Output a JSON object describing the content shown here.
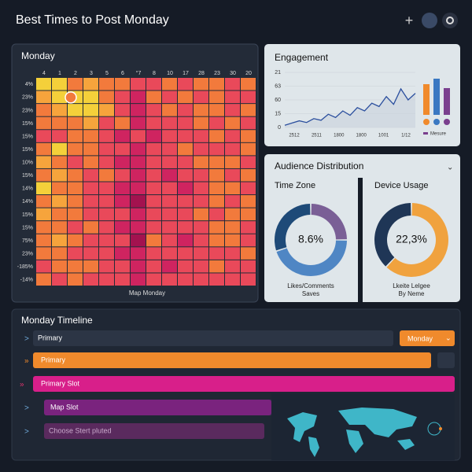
{
  "header": {
    "title": "Best Times to Post Monday"
  },
  "heatmap": {
    "title": "Monday",
    "footer": "Map Monday",
    "columns": [
      "4",
      "1",
      "2",
      "3",
      "5",
      "6",
      "°7",
      "8",
      "10",
      "17",
      "28",
      "23",
      "30",
      "20"
    ],
    "rows": [
      "4%",
      "23%",
      "23%",
      "15%",
      "15%",
      "15%",
      "10%",
      "15%",
      "14%",
      "14%",
      "15%",
      "15%",
      "75%",
      "23%",
      "-185%",
      "-14%"
    ],
    "colors": [
      "#f4d03a",
      "#f6a43c",
      "#f27a3c",
      "#e9495a",
      "#cf2460",
      "#a3124f"
    ],
    "values": [
      [
        1,
        1,
        3,
        2,
        3,
        3,
        4,
        4,
        3,
        4,
        3,
        3,
        4,
        3
      ],
      [
        2,
        1,
        1,
        1,
        3,
        4,
        5,
        3,
        4,
        3,
        4,
        3,
        4,
        4
      ],
      [
        3,
        2,
        1,
        1,
        2,
        4,
        5,
        4,
        3,
        4,
        3,
        3,
        4,
        3
      ],
      [
        3,
        3,
        3,
        2,
        4,
        3,
        5,
        4,
        4,
        4,
        3,
        4,
        3,
        4
      ],
      [
        4,
        4,
        3,
        3,
        4,
        5,
        4,
        5,
        4,
        4,
        4,
        3,
        4,
        3
      ],
      [
        3,
        1,
        3,
        3,
        4,
        4,
        5,
        4,
        4,
        3,
        4,
        4,
        4,
        3
      ],
      [
        2,
        3,
        4,
        3,
        4,
        5,
        5,
        4,
        4,
        4,
        3,
        3,
        3,
        4
      ],
      [
        3,
        2,
        3,
        4,
        3,
        4,
        5,
        4,
        5,
        4,
        4,
        3,
        4,
        3
      ],
      [
        1,
        3,
        3,
        4,
        4,
        5,
        5,
        4,
        4,
        5,
        4,
        3,
        3,
        4
      ],
      [
        3,
        2,
        3,
        4,
        4,
        5,
        6,
        4,
        4,
        4,
        4,
        3,
        4,
        3
      ],
      [
        2,
        3,
        3,
        4,
        4,
        4,
        5,
        4,
        4,
        4,
        3,
        4,
        3,
        3
      ],
      [
        3,
        3,
        4,
        3,
        4,
        5,
        5,
        4,
        4,
        4,
        4,
        3,
        3,
        4
      ],
      [
        3,
        2,
        3,
        4,
        4,
        4,
        6,
        3,
        4,
        5,
        4,
        3,
        3,
        4
      ],
      [
        3,
        3,
        4,
        4,
        4,
        5,
        5,
        4,
        4,
        4,
        4,
        4,
        4,
        3
      ],
      [
        4,
        3,
        3,
        3,
        4,
        4,
        5,
        4,
        5,
        4,
        4,
        3,
        4,
        4
      ],
      [
        3,
        4,
        3,
        4,
        4,
        4,
        5,
        4,
        4,
        4,
        4,
        4,
        4,
        4
      ]
    ]
  },
  "engagement": {
    "title": "Engagement",
    "type": "line",
    "ylabels": [
      "21",
      "63",
      "60",
      "15",
      "0"
    ],
    "xlabels": [
      "2512",
      "2511",
      "1800",
      "1800",
      "1001",
      "1/12"
    ],
    "ylim": [
      0,
      100
    ],
    "color": "#2b4f9e",
    "values": [
      4,
      8,
      12,
      9,
      16,
      13,
      24,
      18,
      30,
      22,
      36,
      30,
      44,
      38,
      56,
      42,
      70,
      50,
      62
    ],
    "bars": {
      "values": [
        78,
        92,
        68
      ],
      "colors": [
        "#f08a2c",
        "#3a78c2",
        "#7a3f8e"
      ],
      "ylim": [
        0,
        100
      ]
    },
    "legend": "Mesure"
  },
  "audience": {
    "title": "Audience Distribution",
    "time_zone": {
      "title": "Time Zone",
      "center": "8.6%",
      "caption": [
        "Likes/Comments",
        "Saves"
      ],
      "values": [
        25,
        45,
        30
      ],
      "colors": [
        "#7a5f96",
        "#4f86c4",
        "#1e4a78"
      ]
    },
    "device": {
      "title": "Device Usage",
      "center": "22,3%",
      "caption": [
        "Lkeite Lelgee",
        "By Neme"
      ],
      "values": [
        62,
        38
      ],
      "colors": [
        "#f0a23e",
        "#1f3656"
      ]
    }
  },
  "timeline": {
    "title": "Monday Timeline",
    "dropdown": "Monday",
    "rows": [
      "Primary",
      "Primary",
      "Primary Slot",
      "Map Slot",
      "Choose Stert pluted"
    ]
  }
}
